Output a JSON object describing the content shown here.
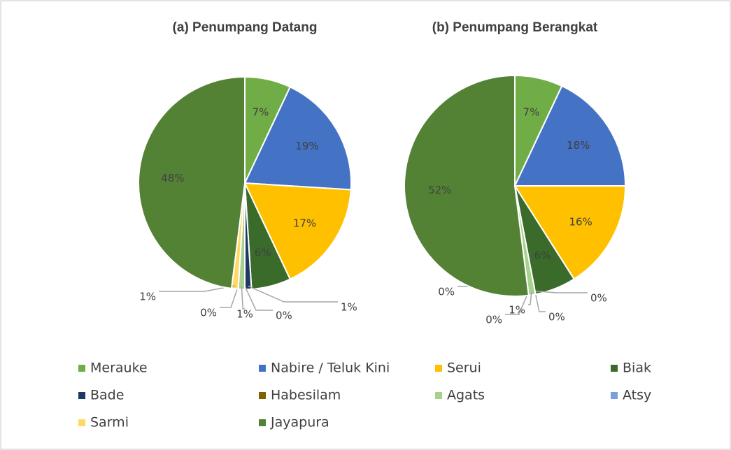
{
  "chart_data": [
    {
      "type": "pie",
      "title": "(a) Penumpang Datang",
      "categories": [
        "Merauke",
        "Nabire / Teluk Kini",
        "Serui",
        "Biak",
        "Bade",
        "Habesilam",
        "Agats",
        "Atsy",
        "Sarmi",
        "Jayapura"
      ],
      "values": [
        7,
        19,
        17,
        6,
        1,
        0,
        1,
        0,
        1,
        48
      ],
      "value_labels": [
        "7%",
        "19%",
        "17%",
        "6%",
        "1%",
        "0%",
        "1%",
        "0%",
        "1%",
        "48%"
      ],
      "colors": [
        "#70ad47",
        "#4472c4",
        "#ffc000",
        "#3a6b2a",
        "#1f3864",
        "#806000",
        "#a9d18e",
        "#7f9fd8",
        "#ffd966",
        "#548235"
      ]
    },
    {
      "type": "pie",
      "title": "(b) Penumpang Berangkat",
      "categories": [
        "Merauke",
        "Nabire / Teluk Kini",
        "Serui",
        "Biak",
        "Bade",
        "Habesilam",
        "Agats",
        "Atsy",
        "Sarmi",
        "Jayapura"
      ],
      "values": [
        7,
        18,
        16,
        6,
        0,
        0,
        1,
        0,
        0,
        52
      ],
      "value_labels": [
        "7%",
        "18%",
        "16%",
        "6%",
        "0%",
        "0%",
        "1%",
        "0%",
        "0%",
        "52%"
      ],
      "colors": [
        "#70ad47",
        "#4472c4",
        "#ffc000",
        "#3a6b2a",
        "#1f3864",
        "#806000",
        "#a9d18e",
        "#7f9fd8",
        "#ffd966",
        "#548235"
      ]
    }
  ]
}
